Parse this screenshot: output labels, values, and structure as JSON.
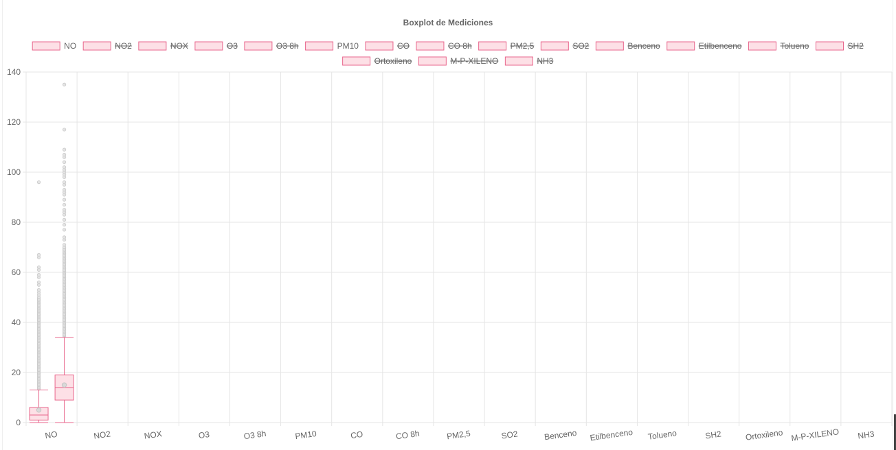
{
  "chart_data": {
    "type": "boxplot",
    "title": "Boxplot de Mediciones",
    "xlabel": "",
    "ylabel": "",
    "ylim": [
      0,
      140
    ],
    "yticks": [
      0,
      20,
      40,
      60,
      80,
      100,
      120,
      140
    ],
    "grid": true,
    "legend_placement": "top",
    "categories": [
      "NO",
      "NO2",
      "NOX",
      "O3",
      "O3 8h",
      "PM10",
      "CO",
      "CO 8h",
      "PM2,5",
      "SO2",
      "Benceno",
      "Etilbenceno",
      "Tolueno",
      "SH2",
      "Ortoxileno",
      "M-P-XILENO",
      "NH3"
    ],
    "legend": [
      {
        "label": "NO",
        "hidden": false
      },
      {
        "label": "NO2",
        "hidden": true
      },
      {
        "label": "NOX",
        "hidden": true
      },
      {
        "label": "O3",
        "hidden": true
      },
      {
        "label": "O3 8h",
        "hidden": true
      },
      {
        "label": "PM10",
        "hidden": false
      },
      {
        "label": "CO",
        "hidden": true
      },
      {
        "label": "CO 8h",
        "hidden": true
      },
      {
        "label": "PM2,5",
        "hidden": true
      },
      {
        "label": "SO2",
        "hidden": true
      },
      {
        "label": "Benceno",
        "hidden": true
      },
      {
        "label": "Etilbenceno",
        "hidden": true
      },
      {
        "label": "Tolueno",
        "hidden": true
      },
      {
        "label": "SH2",
        "hidden": true
      },
      {
        "label": "Ortoxileno",
        "hidden": true
      },
      {
        "label": "M-P-XILENO",
        "hidden": true
      },
      {
        "label": "NH3",
        "hidden": true
      }
    ],
    "colors": {
      "box_fill": "#fde0e6",
      "box_stroke": "#e8668c",
      "outlier": "#c9c9c9",
      "grid": "#e5e5e5",
      "text": "#666666"
    },
    "series": [
      {
        "name": "NO",
        "category": "NO",
        "slot": 0,
        "min": 0,
        "q1": 1,
        "median": 3,
        "mean": 5,
        "q3": 6,
        "max": 13,
        "outliers": [
          13.5,
          14,
          14.5,
          15,
          15.5,
          16,
          16.5,
          17,
          17.5,
          18,
          18.5,
          19,
          19.5,
          20,
          20.5,
          21,
          21.5,
          22,
          22.5,
          23,
          23.5,
          24,
          24.5,
          25,
          25.5,
          26,
          26.5,
          27,
          27.5,
          28,
          28.5,
          29,
          29.5,
          30,
          30.5,
          31,
          31.5,
          32,
          32.5,
          33,
          33.5,
          34,
          34.5,
          35,
          35.5,
          36,
          36.5,
          37,
          37.5,
          38,
          38.5,
          39,
          39.5,
          40,
          40.5,
          41,
          41.5,
          42,
          42.5,
          43,
          43.5,
          44,
          44.5,
          45,
          45.5,
          46,
          46.5,
          47,
          47.5,
          48,
          48.5,
          49,
          49.5,
          50,
          51,
          52,
          53,
          55,
          56,
          58,
          59,
          61,
          62,
          66,
          67,
          96
        ]
      },
      {
        "name": "PM10",
        "category": "NO",
        "slot": 1,
        "min": 0,
        "q1": 9,
        "median": 14,
        "mean": 15,
        "q3": 19,
        "max": 34,
        "outliers": [
          34.5,
          35,
          35.5,
          36,
          36.5,
          37,
          37.5,
          38,
          38.5,
          39,
          39.5,
          40,
          40.5,
          41,
          41.5,
          42,
          42.5,
          43,
          43.5,
          44,
          44.5,
          45,
          45.5,
          46,
          46.5,
          47,
          47.5,
          48,
          48.5,
          49,
          49.5,
          50,
          50.5,
          51,
          51.5,
          52,
          52.5,
          53,
          53.5,
          54,
          54.5,
          55,
          55.5,
          56,
          56.5,
          57,
          57.5,
          58,
          58.5,
          59,
          59.5,
          60,
          60.5,
          61,
          61.5,
          62,
          62.5,
          63,
          63.5,
          64,
          64.5,
          65,
          65.5,
          66,
          66.5,
          67,
          67.5,
          68,
          68.5,
          69,
          69.5,
          70,
          71,
          73,
          74,
          77,
          79,
          81,
          83,
          84,
          85,
          87,
          89,
          91,
          92,
          93,
          95,
          96,
          98,
          99,
          100,
          101,
          102,
          104,
          106,
          107,
          109,
          117,
          135
        ]
      }
    ]
  }
}
